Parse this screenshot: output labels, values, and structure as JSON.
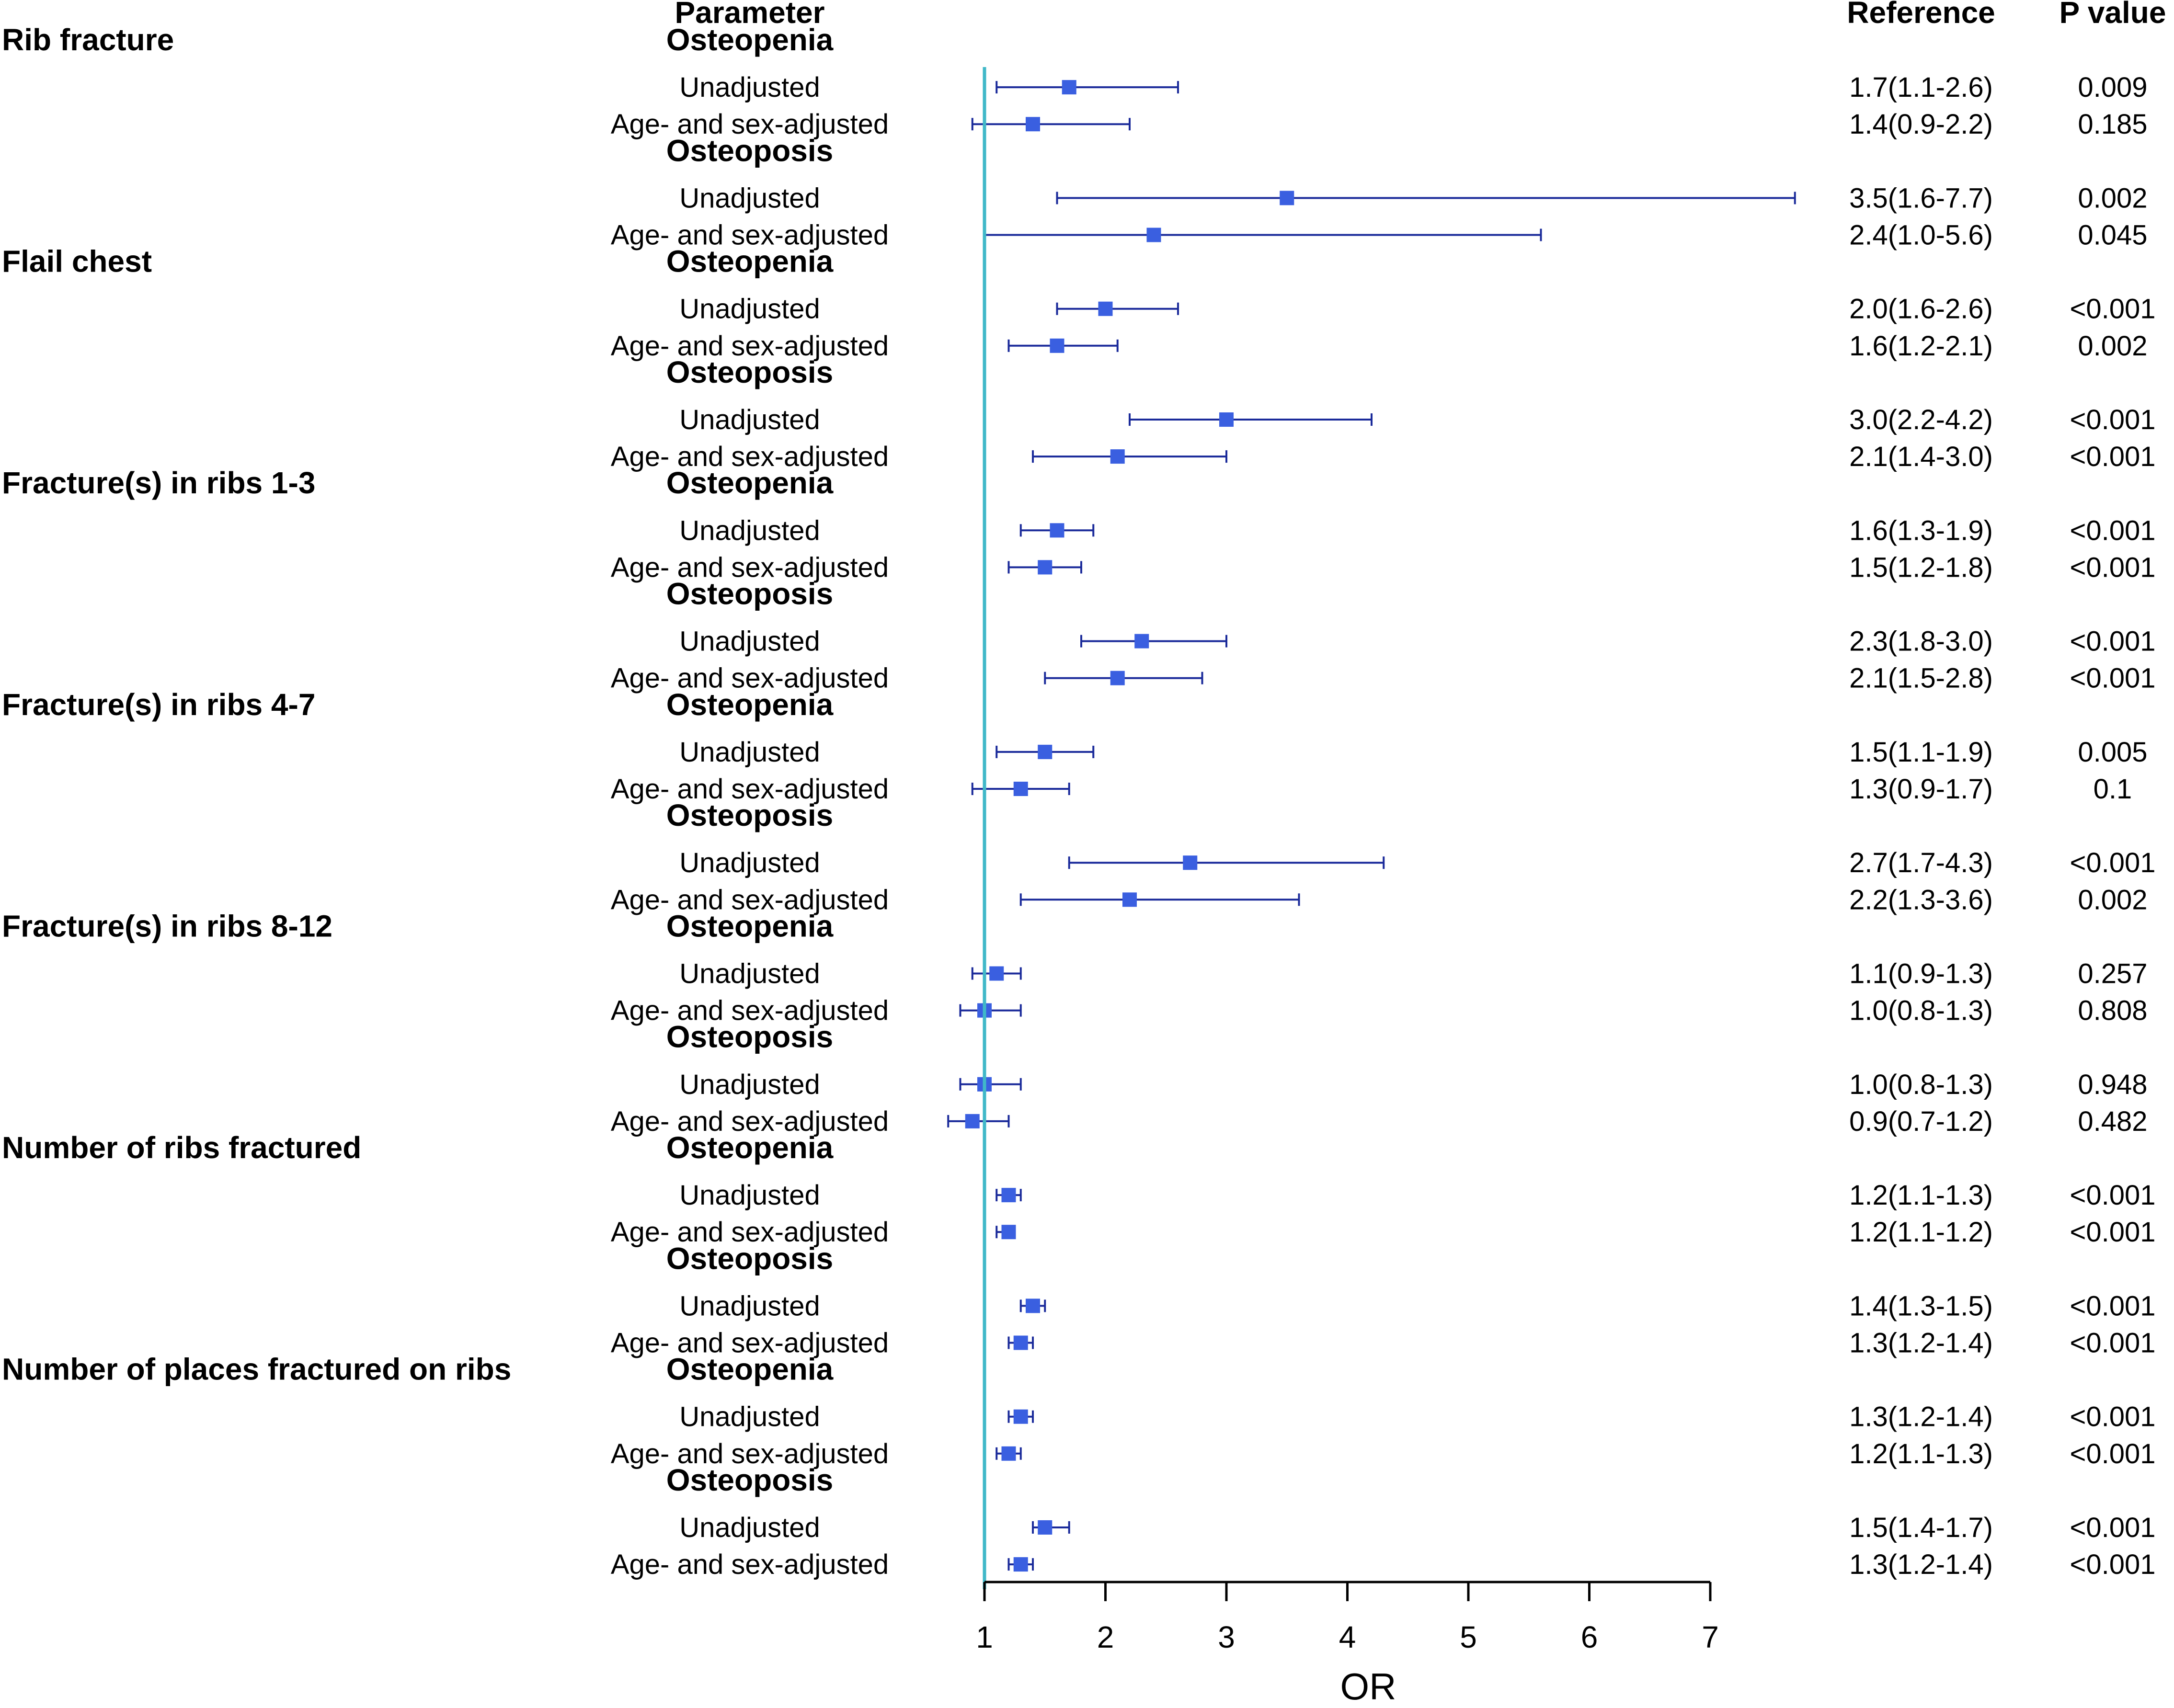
{
  "header": {
    "parameter": "Parameter",
    "reference": "Reference",
    "pvalue": "P value"
  },
  "colors": {
    "ci_line": "#1a2a9a",
    "marker": "#3a5fe0",
    "ref_line": "#40b8c8",
    "axis": "#000000"
  },
  "chart_data": {
    "type": "forest",
    "xlabel": "OR",
    "xlim": [
      1,
      7
    ],
    "xticks": [
      1,
      2,
      3,
      4,
      5,
      6,
      7
    ],
    "reference_line": 1,
    "groups": [
      {
        "title": "Rib fracture",
        "subgroups": [
          {
            "name": "Osteopenia",
            "rows": [
              {
                "label": "Unadjusted",
                "or": 1.7,
                "lo": 1.1,
                "hi": 2.6,
                "ref": "1.7(1.1-2.6)",
                "p": "0.009"
              },
              {
                "label": "Age- and sex-adjusted",
                "or": 1.4,
                "lo": 0.9,
                "hi": 2.2,
                "ref": "1.4(0.9-2.2)",
                "p": "0.185"
              }
            ]
          },
          {
            "name": "Osteoposis",
            "rows": [
              {
                "label": "Unadjusted",
                "or": 3.5,
                "lo": 1.6,
                "hi": 7.7,
                "ref": "3.5(1.6-7.7)",
                "p": "0.002"
              },
              {
                "label": "Age- and sex-adjusted",
                "or": 2.4,
                "lo": 1.0,
                "hi": 5.6,
                "ref": "2.4(1.0-5.6)",
                "p": "0.045"
              }
            ]
          }
        ]
      },
      {
        "title": "Flail chest",
        "subgroups": [
          {
            "name": "Osteopenia",
            "rows": [
              {
                "label": "Unadjusted",
                "or": 2.0,
                "lo": 1.6,
                "hi": 2.6,
                "ref": "2.0(1.6-2.6)",
                "p": "<0.001"
              },
              {
                "label": "Age- and sex-adjusted",
                "or": 1.6,
                "lo": 1.2,
                "hi": 2.1,
                "ref": "1.6(1.2-2.1)",
                "p": "0.002"
              }
            ]
          },
          {
            "name": "Osteoposis",
            "rows": [
              {
                "label": "Unadjusted",
                "or": 3.0,
                "lo": 2.2,
                "hi": 4.2,
                "ref": "3.0(2.2-4.2)",
                "p": "<0.001"
              },
              {
                "label": "Age- and sex-adjusted",
                "or": 2.1,
                "lo": 1.4,
                "hi": 3.0,
                "ref": "2.1(1.4-3.0)",
                "p": "<0.001"
              }
            ]
          }
        ]
      },
      {
        "title": "Fracture(s) in ribs 1-3",
        "subgroups": [
          {
            "name": "Osteopenia",
            "rows": [
              {
                "label": "Unadjusted",
                "or": 1.6,
                "lo": 1.3,
                "hi": 1.9,
                "ref": "1.6(1.3-1.9)",
                "p": "<0.001"
              },
              {
                "label": "Age- and sex-adjusted",
                "or": 1.5,
                "lo": 1.2,
                "hi": 1.8,
                "ref": "1.5(1.2-1.8)",
                "p": "<0.001"
              }
            ]
          },
          {
            "name": "Osteoposis",
            "rows": [
              {
                "label": "Unadjusted",
                "or": 2.3,
                "lo": 1.8,
                "hi": 3.0,
                "ref": "2.3(1.8-3.0)",
                "p": "<0.001"
              },
              {
                "label": "Age- and sex-adjusted",
                "or": 2.1,
                "lo": 1.5,
                "hi": 2.8,
                "ref": "2.1(1.5-2.8)",
                "p": "<0.001"
              }
            ]
          }
        ]
      },
      {
        "title": "Fracture(s) in ribs 4-7",
        "subgroups": [
          {
            "name": "Osteopenia",
            "rows": [
              {
                "label": "Unadjusted",
                "or": 1.5,
                "lo": 1.1,
                "hi": 1.9,
                "ref": "1.5(1.1-1.9)",
                "p": "0.005"
              },
              {
                "label": "Age- and sex-adjusted",
                "or": 1.3,
                "lo": 0.9,
                "hi": 1.7,
                "ref": "1.3(0.9-1.7)",
                "p": "0.1"
              }
            ]
          },
          {
            "name": "Osteoposis",
            "rows": [
              {
                "label": "Unadjusted",
                "or": 2.7,
                "lo": 1.7,
                "hi": 4.3,
                "ref": "2.7(1.7-4.3)",
                "p": "<0.001"
              },
              {
                "label": "Age- and sex-adjusted",
                "or": 2.2,
                "lo": 1.3,
                "hi": 3.6,
                "ref": "2.2(1.3-3.6)",
                "p": "0.002"
              }
            ]
          }
        ]
      },
      {
        "title": "Fracture(s) in ribs 8-12",
        "subgroups": [
          {
            "name": "Osteopenia",
            "rows": [
              {
                "label": "Unadjusted",
                "or": 1.1,
                "lo": 0.9,
                "hi": 1.3,
                "ref": "1.1(0.9-1.3)",
                "p": "0.257"
              },
              {
                "label": "Age- and sex-adjusted",
                "or": 1.0,
                "lo": 0.8,
                "hi": 1.3,
                "ref": "1.0(0.8-1.3)",
                "p": "0.808"
              }
            ]
          },
          {
            "name": "Osteoposis",
            "rows": [
              {
                "label": "Unadjusted",
                "or": 1.0,
                "lo": 0.8,
                "hi": 1.3,
                "ref": "1.0(0.8-1.3)",
                "p": "0.948"
              },
              {
                "label": "Age- and sex-adjusted",
                "or": 0.9,
                "lo": 0.7,
                "hi": 1.2,
                "ref": "0.9(0.7-1.2)",
                "p": "0.482"
              }
            ]
          }
        ]
      },
      {
        "title": "Number of ribs fractured",
        "subgroups": [
          {
            "name": "Osteopenia",
            "rows": [
              {
                "label": "Unadjusted",
                "or": 1.2,
                "lo": 1.1,
                "hi": 1.3,
                "ref": "1.2(1.1-1.3)",
                "p": "<0.001"
              },
              {
                "label": "Age- and sex-adjusted",
                "or": 1.2,
                "lo": 1.1,
                "hi": 1.2,
                "ref": "1.2(1.1-1.2)",
                "p": "<0.001"
              }
            ]
          },
          {
            "name": "Osteoposis",
            "rows": [
              {
                "label": "Unadjusted",
                "or": 1.4,
                "lo": 1.3,
                "hi": 1.5,
                "ref": "1.4(1.3-1.5)",
                "p": "<0.001"
              },
              {
                "label": "Age- and sex-adjusted",
                "or": 1.3,
                "lo": 1.2,
                "hi": 1.4,
                "ref": "1.3(1.2-1.4)",
                "p": "<0.001"
              }
            ]
          }
        ]
      },
      {
        "title": "Number of places fractured on ribs",
        "subgroups": [
          {
            "name": "Osteopenia",
            "rows": [
              {
                "label": "Unadjusted",
                "or": 1.3,
                "lo": 1.2,
                "hi": 1.4,
                "ref": "1.3(1.2-1.4)",
                "p": "<0.001"
              },
              {
                "label": "Age- and sex-adjusted",
                "or": 1.2,
                "lo": 1.1,
                "hi": 1.3,
                "ref": "1.2(1.1-1.3)",
                "p": "<0.001"
              }
            ]
          },
          {
            "name": "Osteoposis",
            "rows": [
              {
                "label": "Unadjusted",
                "or": 1.5,
                "lo": 1.4,
                "hi": 1.7,
                "ref": "1.5(1.4-1.7)",
                "p": "<0.001"
              },
              {
                "label": "Age- and sex-adjusted",
                "or": 1.3,
                "lo": 1.2,
                "hi": 1.4,
                "ref": "1.3(1.2-1.4)",
                "p": "<0.001"
              }
            ]
          }
        ]
      }
    ]
  }
}
